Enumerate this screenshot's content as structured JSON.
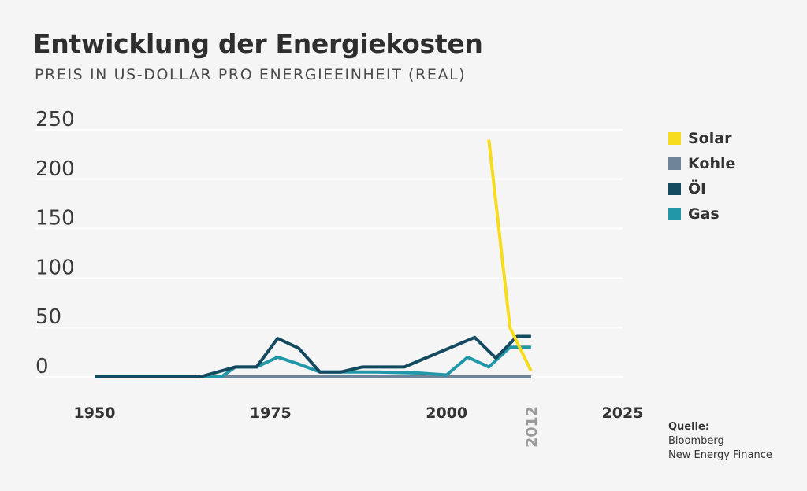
{
  "title": "Entwicklung der Energiekosten",
  "subtitle": "PREIS IN US-DOLLAR PRO ENERGIEEINHEIT (REAL)",
  "source": {
    "label": "Quelle:",
    "line1": "Bloomberg",
    "line2": "New Energy Finance"
  },
  "chart_data": {
    "type": "line",
    "title": "Entwicklung der Energiekosten",
    "subtitle": "PREIS IN US-DOLLAR PRO ENERGIEEINHEIT (REAL)",
    "xlim": [
      1950,
      2025
    ],
    "ylim": [
      0,
      250
    ],
    "y_ticks": [
      0,
      50,
      100,
      150,
      200,
      250
    ],
    "x_ticks": [
      1950,
      1975,
      2000,
      2025
    ],
    "highlight_tick": 2012,
    "grid": "horizontal",
    "legend_position": "right",
    "series": [
      {
        "name": "Solar",
        "color": "#f7dc1e",
        "points": [
          [
            2006,
            240
          ],
          [
            2009,
            50
          ],
          [
            2012,
            6
          ]
        ]
      },
      {
        "name": "Kohle",
        "color": "#6d8499",
        "points": [
          [
            1950,
            0
          ],
          [
            2012,
            0
          ]
        ]
      },
      {
        "name": "Öl",
        "color": "#144a60",
        "points": [
          [
            1950,
            0
          ],
          [
            1965,
            0
          ],
          [
            1970,
            10
          ],
          [
            1973,
            10
          ],
          [
            1976,
            39
          ],
          [
            1979,
            29
          ],
          [
            1982,
            5
          ],
          [
            1985,
            5
          ],
          [
            1988,
            10
          ],
          [
            1994,
            10
          ],
          [
            2004,
            40
          ],
          [
            2007,
            19
          ],
          [
            2010,
            41
          ],
          [
            2012,
            41
          ]
        ]
      },
      {
        "name": "Gas",
        "color": "#2297a8",
        "points": [
          [
            1950,
            0
          ],
          [
            1968,
            0
          ],
          [
            1970,
            10
          ],
          [
            1973,
            10
          ],
          [
            1976,
            20
          ],
          [
            1979,
            13
          ],
          [
            1982,
            5
          ],
          [
            1990,
            5
          ],
          [
            1996,
            4
          ],
          [
            2000,
            2
          ],
          [
            2003,
            20
          ],
          [
            2006,
            10
          ],
          [
            2009,
            30
          ],
          [
            2012,
            30
          ]
        ]
      }
    ]
  }
}
